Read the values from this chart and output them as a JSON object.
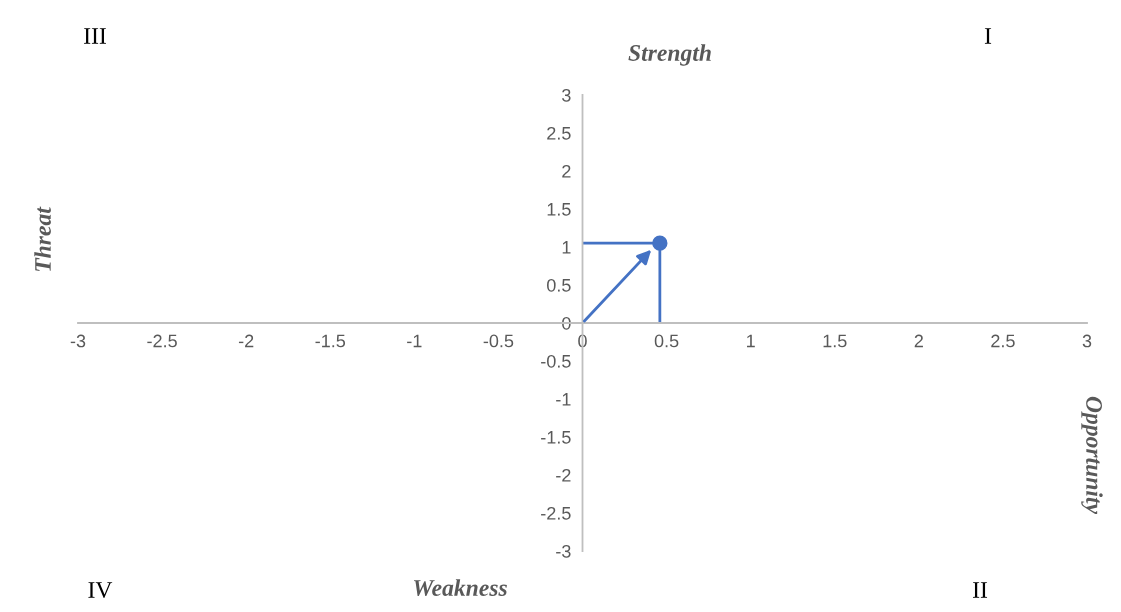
{
  "chart_data": {
    "type": "scatter",
    "x": [
      0.46
    ],
    "values": [
      1.05
    ],
    "color": "#4472c4",
    "marker": "circle",
    "errors": [
      [
        0,
        1.05
      ]
    ],
    "xerrors": [
      [
        0,
        0.46
      ]
    ],
    "xlim": [
      -3,
      3
    ],
    "ylim": [
      -3,
      3
    ],
    "xticks": [
      -3,
      -2.5,
      -2,
      -1.5,
      -1,
      -0.5,
      0,
      0.5,
      1,
      1.5,
      2,
      2.5,
      3
    ],
    "yticks": [
      -3,
      -2.5,
      -2,
      -1.5,
      -1,
      -0.5,
      0,
      0.5,
      1,
      1.5,
      2,
      2.5,
      3
    ],
    "grid": false,
    "legend": false,
    "annotations": [
      "III",
      "I",
      "IV",
      "II",
      "Strength",
      "Threat",
      "Weakness",
      "Opportunity"
    ]
  }
}
